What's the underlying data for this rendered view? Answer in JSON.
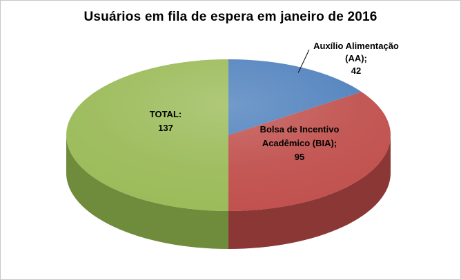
{
  "chart_data": {
    "type": "pie",
    "is_3d": true,
    "title": "Usuários em fila de espera em janeiro de 2016",
    "start_angle_deg": 0,
    "direction": "clockwise",
    "legend": "none",
    "slices": [
      {
        "id": "aa",
        "label": "Auxílio Alimentação (AA)",
        "value": 42,
        "color": "#4F81BD",
        "side_color": "#365A82",
        "label_lines": [
          "Auxílio Alimentação",
          "(AA);",
          "42"
        ],
        "callout": true
      },
      {
        "id": "bia",
        "label": "Bolsa de Incentivo Acadêmico (BIA)",
        "value": 95,
        "color": "#C0504D",
        "side_color": "#8B3735",
        "label_lines": [
          "Bolsa de Incentivo",
          "Acadêmico (BIA);",
          "95"
        ],
        "callout": false
      },
      {
        "id": "total",
        "label": "TOTAL",
        "value": 137,
        "color": "#9BBB59",
        "side_color": "#6E8C3C",
        "label_lines": [
          "TOTAL:",
          "137"
        ],
        "callout": false
      }
    ]
  }
}
